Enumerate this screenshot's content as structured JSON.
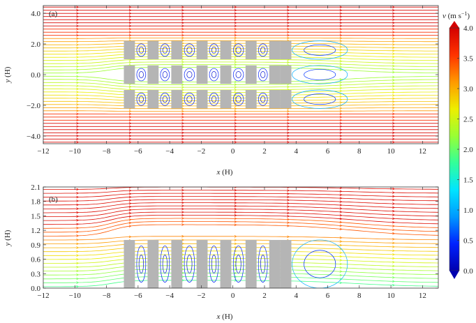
{
  "chart_data": [
    {
      "type": "streamline",
      "panel_label": "(a)",
      "xlabel": "x",
      "xunit": "(H)",
      "ylabel": "y",
      "yunit": "(H)",
      "xlim": [
        -12,
        13
      ],
      "ylim": [
        -4.5,
        4.5
      ],
      "xticks": [
        -12,
        -10,
        -8,
        -6,
        -4,
        -2,
        0,
        2,
        4,
        6,
        8,
        10,
        12
      ],
      "yticks": [
        -4.0,
        -2.0,
        0.0,
        2.0,
        4.0
      ],
      "ytick_labels": [
        "-4.0",
        "-2.0",
        "0.0",
        "2.0",
        "4.0"
      ],
      "building_rows": [
        [
          1.0,
          2.2
        ],
        [
          -0.6,
          0.6
        ],
        [
          -2.2,
          -1.0
        ]
      ],
      "building_columns": [
        [
          -6.9,
          -6.2
        ],
        [
          -5.4,
          -4.7
        ],
        [
          -3.9,
          -3.2
        ],
        [
          -2.3,
          -1.6
        ],
        [
          -0.8,
          -0.1
        ],
        [
          0.8,
          1.5
        ],
        [
          2.3,
          3.0
        ],
        [
          3.0,
          3.7
        ]
      ]
    },
    {
      "type": "streamline",
      "panel_label": "(b)",
      "xlabel": "x",
      "xunit": "(H)",
      "ylabel": "y",
      "yunit": "(H)",
      "xlim": [
        -12,
        13
      ],
      "ylim": [
        0,
        2.1
      ],
      "xticks": [
        -12,
        -10,
        -8,
        -6,
        -4,
        -2,
        0,
        2,
        4,
        6,
        8,
        10,
        12
      ],
      "yticks": [
        0.0,
        0.3,
        0.6,
        0.9,
        1.2,
        1.5,
        1.8,
        2.1
      ],
      "ytick_labels": [
        "0.0",
        "0.3",
        "0.6",
        "0.9",
        "1.2",
        "1.5",
        "1.8",
        "2.1"
      ],
      "building_height": 1.0,
      "building_columns": [
        [
          -6.9,
          -6.2
        ],
        [
          -5.4,
          -4.7
        ],
        [
          -3.9,
          -3.2
        ],
        [
          -2.3,
          -1.6
        ],
        [
          -0.8,
          -0.1
        ],
        [
          0.8,
          1.5
        ],
        [
          2.3,
          3.0
        ],
        [
          3.0,
          3.7
        ]
      ]
    }
  ],
  "colorbar": {
    "title_var": "v",
    "title_unit": "(m  s",
    "title_exp": "−1",
    "title_close": ")",
    "min": 0.0,
    "max": 4.0,
    "ticks": [
      "0.0",
      "0.5",
      "1.0",
      "1.5",
      "2.0",
      "2.5",
      "3.0",
      "3.5",
      "4.0"
    ],
    "colors": [
      "#0000b0",
      "#0022ff",
      "#0099ff",
      "#00e5ff",
      "#33ff99",
      "#99ff33",
      "#eeee00",
      "#ff9900",
      "#ff3300",
      "#d40000"
    ]
  }
}
